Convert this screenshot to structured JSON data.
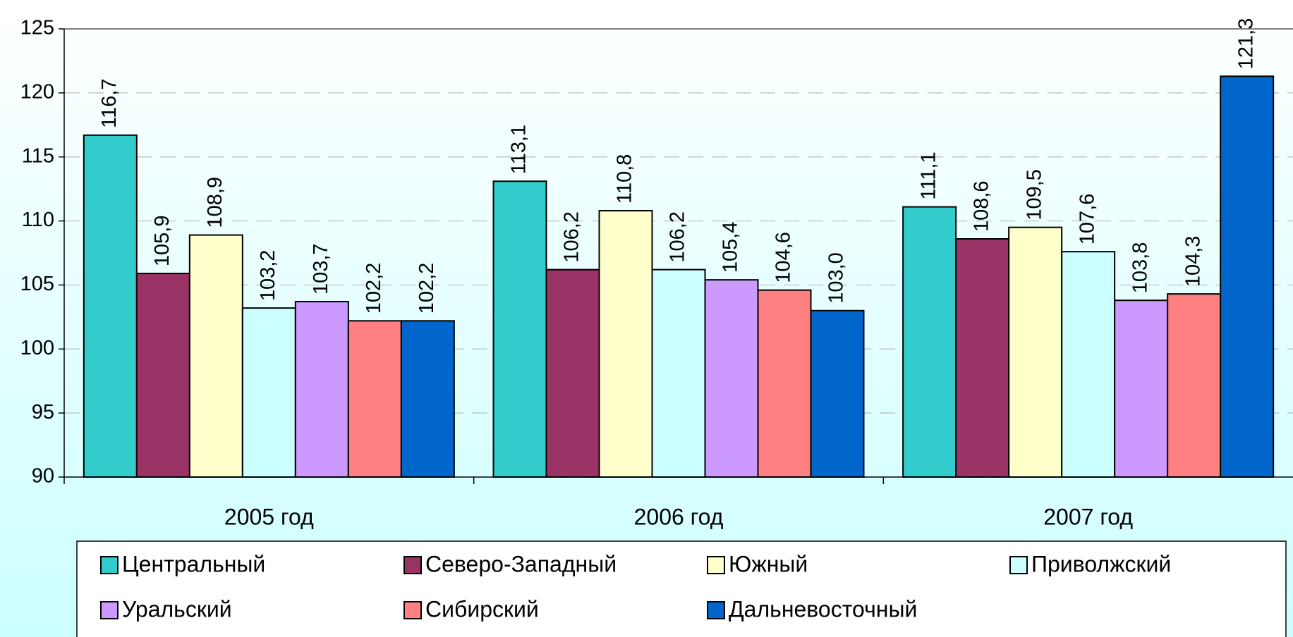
{
  "chart_data": {
    "type": "bar",
    "categories": [
      "2005 год",
      "2006 год",
      "2007 год"
    ],
    "series": [
      {
        "name": "Центральный",
        "color": "#33CCCC",
        "values": [
          116.7,
          113.1,
          111.1
        ],
        "value_labels": [
          "116,7",
          "113,1",
          "111,1"
        ]
      },
      {
        "name": "Северо-Западный",
        "color": "#993366",
        "values": [
          105.9,
          106.2,
          108.6
        ],
        "value_labels": [
          "105,9",
          "106,2",
          "108,6"
        ]
      },
      {
        "name": "Южный",
        "color": "#FFFFCC",
        "values": [
          108.9,
          110.8,
          109.5
        ],
        "value_labels": [
          "108,9",
          "110,8",
          "109,5"
        ]
      },
      {
        "name": "Приволжский",
        "color": "#CCFFFF",
        "values": [
          103.2,
          106.2,
          107.6
        ],
        "value_labels": [
          "103,2",
          "106,2",
          "107,6"
        ]
      },
      {
        "name": "Уральский",
        "color": "#CC99FF",
        "values": [
          103.7,
          105.4,
          103.8
        ],
        "value_labels": [
          "103,7",
          "105,4",
          "103,8"
        ]
      },
      {
        "name": "Сибирский",
        "color": "#FF8080",
        "values": [
          102.2,
          104.6,
          104.3
        ],
        "value_labels": [
          "102,2",
          "104,6",
          "104,3"
        ]
      },
      {
        "name": "Дальневосточный",
        "color": "#0066CC",
        "values": [
          102.2,
          103.0,
          121.3
        ],
        "value_labels": [
          "102,2",
          "103,0",
          "121,3"
        ]
      }
    ],
    "ylim": [
      90,
      125
    ],
    "yticks": [
      90,
      95,
      100,
      105,
      110,
      115,
      120,
      125
    ],
    "grid": true,
    "legend": "bottom"
  }
}
